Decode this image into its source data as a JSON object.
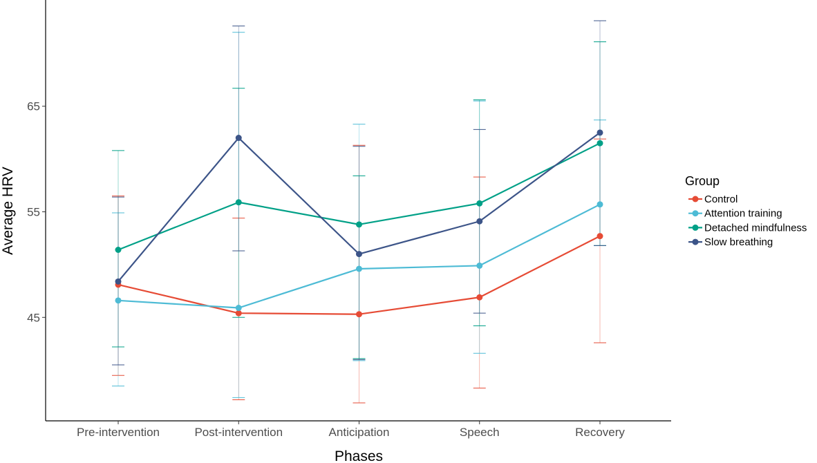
{
  "chart_data": {
    "type": "line",
    "xlabel": "Phases",
    "ylabel": "Average HRV",
    "categories": [
      "Pre-intervention",
      "Post-intervention",
      "Anticipation",
      "Speech",
      "Recovery"
    ],
    "y_ticks": [
      45,
      55,
      65
    ],
    "ylim": [
      35.2,
      74.8
    ],
    "grid": false,
    "legend": {
      "title": "Group",
      "placement": "right"
    },
    "series": [
      {
        "name": "Control",
        "color": "#E64B35",
        "values": [
          48.1,
          45.4,
          45.3,
          46.9,
          52.7
        ],
        "err_low": [
          39.5,
          37.2,
          36.9,
          38.3,
          42.6
        ],
        "err_high": [
          56.5,
          54.4,
          61.3,
          58.3,
          61.9
        ]
      },
      {
        "name": "Attention training",
        "color": "#4DBBD5",
        "values": [
          46.6,
          45.9,
          49.6,
          49.9,
          55.7
        ],
        "err_low": [
          38.5,
          37.4,
          40.9,
          41.6,
          51.8
        ],
        "err_high": [
          54.9,
          72.0,
          63.3,
          65.5,
          63.7
        ]
      },
      {
        "name": "Detached mindfulness",
        "color": "#00A087",
        "values": [
          51.4,
          55.9,
          53.8,
          55.8,
          61.5
        ],
        "err_low": [
          42.2,
          45.0,
          41.1,
          44.2,
          51.8
        ],
        "err_high": [
          60.8,
          66.7,
          58.4,
          65.6,
          71.1
        ]
      },
      {
        "name": "Slow breathing",
        "color": "#3C5488",
        "values": [
          48.4,
          62.0,
          51.0,
          54.1,
          62.5
        ],
        "err_low": [
          40.5,
          51.3,
          41.0,
          45.4,
          51.8
        ],
        "err_high": [
          56.4,
          72.6,
          61.2,
          62.8,
          73.1
        ]
      }
    ]
  }
}
